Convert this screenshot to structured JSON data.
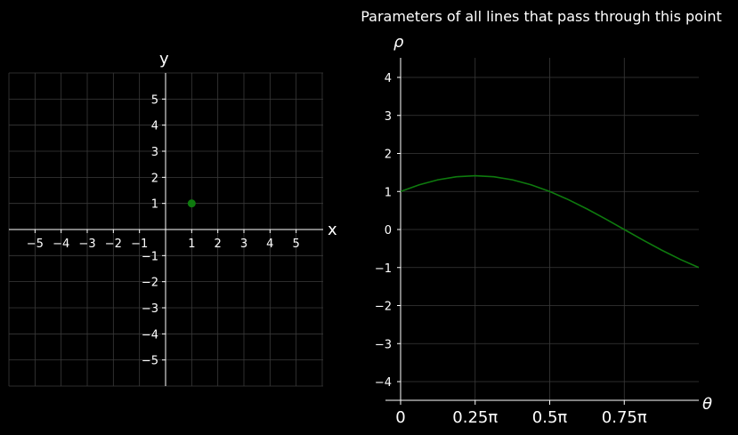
{
  "colors": {
    "background": "#000000",
    "axis": "#ffffff",
    "grid": "#3a3a3a",
    "series": "#0e7a0e"
  },
  "chart_data": [
    {
      "type": "scatter",
      "title": "",
      "xlabel": "x",
      "ylabel": "y",
      "xlim": [
        -6,
        6
      ],
      "ylim": [
        -6,
        6
      ],
      "grid": true,
      "xticks": [
        -5,
        -4,
        -3,
        -2,
        -1,
        1,
        2,
        3,
        4,
        5
      ],
      "xtick_labels": [
        "−5",
        "−4",
        "−3",
        "−2",
        "−1",
        "1",
        "2",
        "3",
        "4",
        "5"
      ],
      "yticks": [
        5,
        4,
        3,
        2,
        1,
        -1,
        -2,
        -3,
        -4,
        -5
      ],
      "ytick_labels": [
        "5",
        "4",
        "3",
        "2",
        "1",
        "−1",
        "−2",
        "−3",
        "−4",
        "−5"
      ],
      "points": [
        {
          "x": 1,
          "y": 1
        }
      ]
    },
    {
      "type": "line",
      "title": "Parameters of all lines that pass through this point",
      "xlabel": "θ",
      "ylabel": "ρ",
      "xlim": [
        0,
        3.14159
      ],
      "ylim": [
        -4.5,
        4.5
      ],
      "grid": true,
      "xticks": [
        0,
        0.7854,
        1.5708,
        2.3562
      ],
      "xtick_labels": [
        "0",
        "0.25π",
        "0.5π",
        "0.75π"
      ],
      "yticks": [
        4,
        3,
        2,
        1,
        0,
        -1,
        -2,
        -3,
        -4
      ],
      "ytick_labels": [
        "4",
        "3",
        "2",
        "1",
        "0",
        "−1",
        "−2",
        "−3",
        "−4"
      ],
      "series": [
        {
          "x": [
            0,
            0.1963,
            0.3927,
            0.589,
            0.7854,
            0.9817,
            1.1781,
            1.3744,
            1.5708,
            1.7671,
            1.9635,
            2.1598,
            2.3562,
            2.5525,
            2.7489,
            2.9452,
            3.1416
          ],
          "values": [
            1.0,
            1.176,
            1.307,
            1.387,
            1.414,
            1.387,
            1.307,
            1.176,
            1.0,
            0.785,
            0.541,
            0.276,
            0.0,
            -0.276,
            -0.541,
            -0.785,
            -1.0
          ]
        }
      ]
    }
  ]
}
